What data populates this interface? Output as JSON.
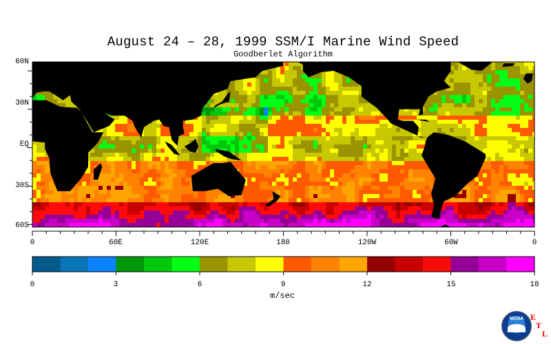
{
  "title": "August 24 – 28, 1999 SSM/I Marine Wind Speed",
  "subtitle": "Goodberlet Algorithm",
  "lat_labels": [
    "60N",
    "30N",
    "EQ",
    "30S",
    "60S"
  ],
  "lon_labels": [
    "0",
    "60E",
    "120E",
    "180",
    "120W",
    "60W",
    "0"
  ],
  "colorbar": {
    "unit": "m/sec",
    "tick_labels": [
      "0",
      "3",
      "6",
      "9",
      "12",
      "15",
      "18"
    ],
    "min": 0,
    "max": 18,
    "colors": [
      "#005a8c",
      "#0a74b8",
      "#0a82ff",
      "#00960a",
      "#00c80a",
      "#00ff14",
      "#9a9400",
      "#c8c800",
      "#ffff00",
      "#ff5a00",
      "#ff8200",
      "#ffa500",
      "#960000",
      "#c80000",
      "#ff0a0a",
      "#960096",
      "#c800c8",
      "#ff00ff"
    ]
  },
  "logo": {
    "text": "NOAA",
    "letters": [
      "E",
      "T",
      "L"
    ]
  },
  "colors": {
    "land": "#000000",
    "ocean_base": "#ffff00"
  }
}
